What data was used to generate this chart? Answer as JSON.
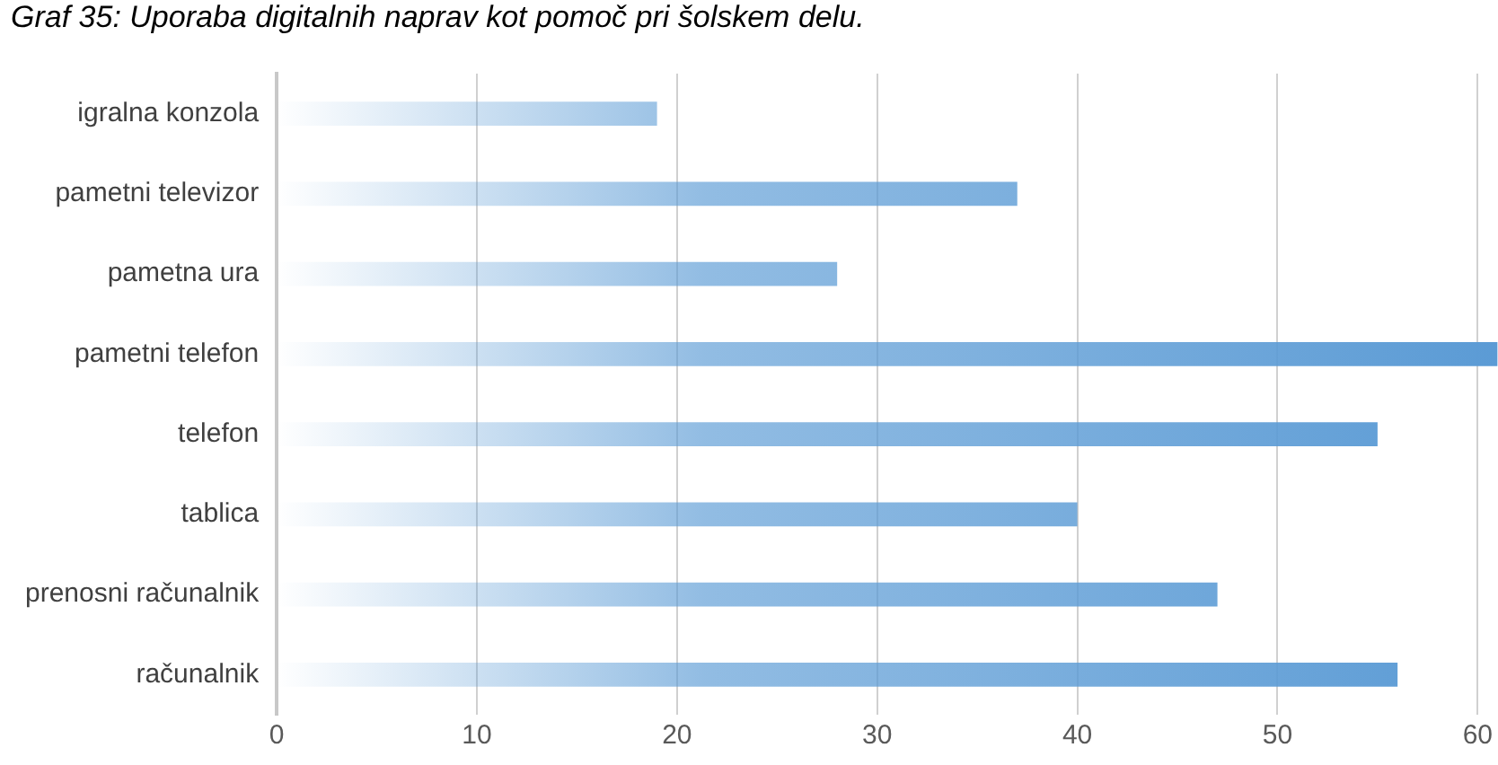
{
  "chart_data": {
    "type": "bar",
    "orientation": "horizontal",
    "title": "Graf 35: Uporaba digitalnih naprav kot pomoč pri šolskem delu.",
    "categories": [
      "igralna konzola",
      "pametni televizor",
      "pametna ura",
      "pametni telefon",
      "telefon",
      "tablica",
      "prenosni računalnik",
      "računalnik"
    ],
    "values": [
      19,
      37,
      28,
      61,
      55,
      40,
      47,
      56
    ],
    "color": "#5b9bd5",
    "xlim": [
      0,
      61
    ],
    "xticks": [
      0,
      10,
      20,
      30,
      40,
      50,
      60
    ],
    "grid": "x",
    "legend": false
  }
}
